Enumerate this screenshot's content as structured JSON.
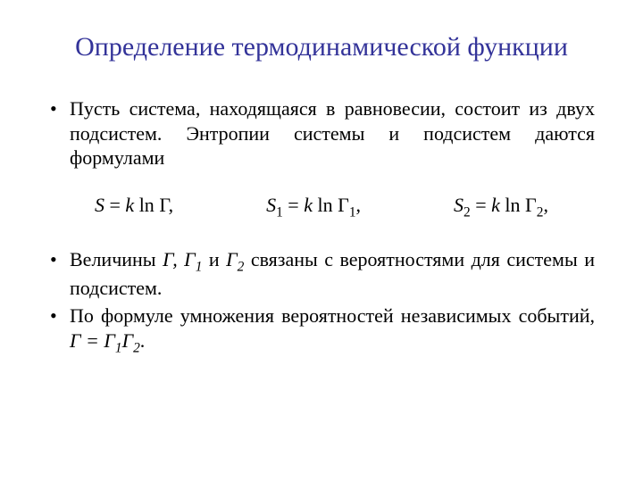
{
  "title_color": "#333399",
  "text_color": "#000000",
  "background_color": "#ffffff",
  "title_fontsize": 30,
  "body_fontsize": 22,
  "title": "Определение термодинамической функции",
  "bullets": {
    "b1": "Пусть система, находящаяся в равновесии, состоит из двух подсистем. Энтропии системы и подсистем даются формулами",
    "b2_prefix": "Величины ",
    "b2_g": "Г, Г",
    "b2_sub1": "1",
    "b2_mid": " и ",
    "b2_g2": "Г",
    "b2_sub2": "2",
    "b2_suffix": " связаны с вероятностями для системы и подсистем.",
    "b3_prefix": "По формуле умножения вероятностей независимых событий, ",
    "b3_eq_lhs": "Г = Г",
    "b3_eq_s1": "1",
    "b3_eq_g2": "Г",
    "b3_eq_s2": "2",
    "b3_eq_end": "."
  },
  "formulas": {
    "f1_lhs": "S",
    "f1_eq": " = ",
    "f1_k": "k",
    "f1_ln": " ln ",
    "f1_g": "Г",
    "f1_comma": ",",
    "f2_lhs": "S",
    "f2_sub": "1",
    "f2_eq": " = ",
    "f2_k": "k",
    "f2_ln": " ln ",
    "f2_g": "Г",
    "f2_gsub": "1",
    "f2_comma": ",",
    "f3_lhs": "S",
    "f3_sub": "2",
    "f3_eq": " = ",
    "f3_k": "k",
    "f3_ln": " ln ",
    "f3_g": "Г",
    "f3_gsub": "2",
    "f3_comma": ","
  }
}
